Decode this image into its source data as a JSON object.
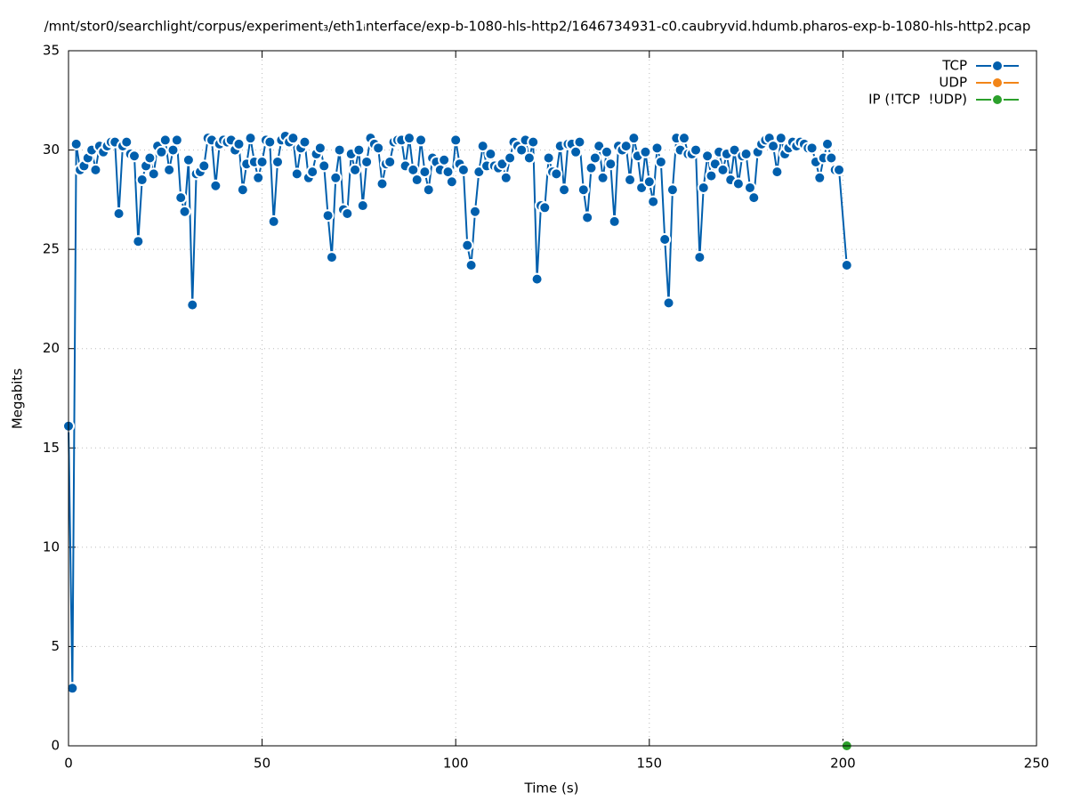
{
  "chart_data": {
    "type": "line",
    "title": "/mnt/stor0/searchlight/corpus/experiment₃/eth1ᵢnterface/exp-b-1080-hls-http2/1646734931-c0.caubryvid.hdumb.pharos-exp-b-1080-hls-http2.pcap",
    "x_label": "Time (s)",
    "y_label": "Megabits",
    "xlim": [
      0,
      250
    ],
    "xticks": [
      0,
      50,
      100,
      150,
      200,
      250
    ],
    "ylim": [
      0,
      35
    ],
    "yticks": [
      0,
      5,
      10,
      15,
      20,
      25,
      30,
      35
    ],
    "grid": true,
    "legend": "top-right",
    "series": [
      {
        "name": "TCP",
        "color": "#005fad",
        "x": [
          0,
          1,
          2,
          3,
          4,
          5,
          6,
          7,
          8,
          9,
          10,
          11,
          12,
          13,
          14,
          15,
          16,
          17,
          18,
          19,
          20,
          21,
          22,
          23,
          24,
          25,
          26,
          27,
          28,
          29,
          30,
          31,
          32,
          33,
          34,
          35,
          36,
          37,
          38,
          39,
          40,
          41,
          42,
          43,
          44,
          45,
          46,
          47,
          48,
          49,
          50,
          51,
          52,
          53,
          54,
          55,
          56,
          57,
          58,
          59,
          60,
          61,
          62,
          63,
          64,
          65,
          66,
          67,
          68,
          69,
          70,
          71,
          72,
          73,
          74,
          75,
          76,
          77,
          78,
          79,
          80,
          81,
          82,
          83,
          84,
          85,
          86,
          87,
          88,
          89,
          90,
          91,
          92,
          93,
          94,
          95,
          96,
          97,
          98,
          99,
          100,
          101,
          102,
          103,
          104,
          105,
          106,
          107,
          108,
          109,
          110,
          111,
          112,
          113,
          114,
          115,
          116,
          117,
          118,
          119,
          120,
          121,
          122,
          123,
          124,
          125,
          126,
          127,
          128,
          129,
          130,
          131,
          132,
          133,
          134,
          135,
          136,
          137,
          138,
          139,
          140,
          141,
          142,
          143,
          144,
          145,
          146,
          147,
          148,
          149,
          150,
          151,
          152,
          153,
          154,
          155,
          156,
          157,
          158,
          159,
          160,
          161,
          162,
          163,
          164,
          165,
          166,
          167,
          168,
          169,
          170,
          171,
          172,
          173,
          174,
          175,
          176,
          177,
          178,
          179,
          180,
          181,
          182,
          183,
          184,
          185,
          186,
          187,
          188,
          189,
          190,
          191,
          192,
          193,
          194,
          195,
          196,
          197,
          198,
          199,
          201
        ],
        "values": [
          16.1,
          2.9,
          30.3,
          29.0,
          29.2,
          29.6,
          30.0,
          29.0,
          30.2,
          29.9,
          30.2,
          30.4,
          30.4,
          26.8,
          30.2,
          30.4,
          29.8,
          29.7,
          25.4,
          28.5,
          29.2,
          29.6,
          28.8,
          30.2,
          29.9,
          30.5,
          29.0,
          30.0,
          30.5,
          27.6,
          26.9,
          29.5,
          22.2,
          28.8,
          28.9,
          29.2,
          30.6,
          30.5,
          28.2,
          30.3,
          30.5,
          30.4,
          30.5,
          30.0,
          30.3,
          28.0,
          29.3,
          30.6,
          29.4,
          28.6,
          29.4,
          30.5,
          30.4,
          26.4,
          29.4,
          30.5,
          30.7,
          30.4,
          30.6,
          28.8,
          30.1,
          30.4,
          28.6,
          28.9,
          29.8,
          30.1,
          29.2,
          26.7,
          24.6,
          28.6,
          30.0,
          27.0,
          26.8,
          29.8,
          29.0,
          30.0,
          27.2,
          29.4,
          30.6,
          30.3,
          30.1,
          28.3,
          29.3,
          29.4,
          30.4,
          30.5,
          30.5,
          29.2,
          30.6,
          29.0,
          28.5,
          30.5,
          28.9,
          28.0,
          29.6,
          29.4,
          29.0,
          29.5,
          28.9,
          28.4,
          30.5,
          29.3,
          29.0,
          25.2,
          24.2,
          26.9,
          28.9,
          30.2,
          29.2,
          29.8,
          29.2,
          29.1,
          29.3,
          28.6,
          29.6,
          30.4,
          30.2,
          30.0,
          30.5,
          29.6,
          30.4,
          23.5,
          27.2,
          27.1,
          29.6,
          28.9,
          28.8,
          30.2,
          28.0,
          30.3,
          30.3,
          29.9,
          30.4,
          28.0,
          26.6,
          29.1,
          29.6,
          30.2,
          28.6,
          29.9,
          29.3,
          26.4,
          30.2,
          30.0,
          30.2,
          28.5,
          30.6,
          29.7,
          28.1,
          29.9,
          28.4,
          27.4,
          30.1,
          29.4,
          25.5,
          22.3,
          28.0,
          30.6,
          30.0,
          30.6,
          29.8,
          29.8,
          30.0,
          24.6,
          28.1,
          29.7,
          28.7,
          29.3,
          29.9,
          29.0,
          29.8,
          28.5,
          30.0,
          28.3,
          29.7,
          29.8,
          28.1,
          27.6,
          29.9,
          30.3,
          30.5,
          30.6,
          30.2,
          28.9,
          30.6,
          29.8,
          30.1,
          30.4,
          30.2,
          30.4,
          30.3,
          30.1,
          30.1,
          29.4,
          28.6,
          29.6,
          30.3,
          29.6,
          29.0,
          29.0,
          24.2
        ]
      },
      {
        "name": "UDP",
        "color": "#f28518",
        "x": [],
        "values": []
      },
      {
        "name": "IP (!TCP  !UDP)",
        "color": "#2ca02c",
        "x": [
          201
        ],
        "values": [
          0
        ]
      }
    ]
  }
}
